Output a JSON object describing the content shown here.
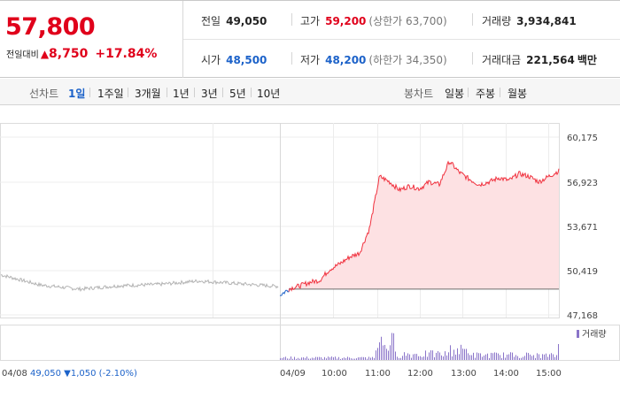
{
  "summary": {
    "current_price": "57,800",
    "change_label": "전일대비",
    "change_arrow": "▲",
    "change_amount": "8,750",
    "change_pct": "+17.84%",
    "up_color": "#e0001b",
    "down_color": "#1c62c9"
  },
  "stats": {
    "prev_close": {
      "label": "전일",
      "value": "49,050"
    },
    "high": {
      "label": "고가",
      "value": "59,200",
      "sub": "(상한가 63,700)"
    },
    "volume": {
      "label": "거래량",
      "value": "3,934,841"
    },
    "open": {
      "label": "시가",
      "value": "48,500"
    },
    "low": {
      "label": "저가",
      "value": "48,200",
      "sub": "(하한가 34,350)"
    },
    "trade_value": {
      "label": "거래대금",
      "value": "221,564",
      "unit": "백만"
    }
  },
  "tabs": {
    "line_label": "선차트",
    "line_items": [
      "1일",
      "1주일",
      "3개월",
      "1년",
      "3년",
      "5년",
      "10년"
    ],
    "active_index": 0,
    "candle_label": "봉차트",
    "candle_items": [
      "일봉",
      "주봉",
      "월봉"
    ]
  },
  "chart_data": {
    "type": "line",
    "y_ticks": [
      "60,175",
      "56,923",
      "53,671",
      "50,419",
      "47,168"
    ],
    "ylim": [
      47168,
      60175
    ],
    "x_ticks": [
      "04/08",
      "04/09",
      "10:00",
      "11:00",
      "12:00",
      "13:00",
      "14:00",
      "15:00"
    ],
    "volume_legend": "거래량",
    "prev_day_footer": "49,050 ▼1,050 (-2.10%)",
    "prev_close_level": 49050,
    "prev_day_series": {
      "x": [
        "04/08 09:00",
        "04/08 10:00",
        "04/08 11:00",
        "04/08 12:00",
        "04/08 13:00",
        "04/08 14:00",
        "04/08 15:00",
        "04/08 15:30"
      ],
      "values": [
        50100,
        49350,
        49050,
        49300,
        49400,
        49650,
        49450,
        49250
      ]
    },
    "today_series": {
      "x": [
        "09:00",
        "09:10",
        "09:30",
        "09:50",
        "10:00",
        "10:10",
        "10:30",
        "10:50",
        "10:55",
        "11:00",
        "11:10",
        "11:30",
        "11:45",
        "12:00",
        "12:20",
        "12:40",
        "12:50",
        "13:00",
        "13:10",
        "13:20",
        "13:30",
        "13:45",
        "14:00",
        "14:15",
        "14:30",
        "14:45",
        "15:00",
        "15:10",
        "15:20"
      ],
      "values": [
        48600,
        49100,
        49300,
        49550,
        49700,
        50500,
        50900,
        51400,
        51700,
        53500,
        57300,
        56900,
        56300,
        56600,
        56400,
        56900,
        56700,
        58400,
        57600,
        57100,
        56700,
        56900,
        57200,
        57000,
        57500,
        57300,
        56900,
        57300,
        57700
      ]
    },
    "colors": {
      "prev_day": "#b3b3b3",
      "up": "#f0313e",
      "up_fill": "#fde1e3",
      "open_segment": "#1c62c9",
      "volume": "#8a74c9"
    }
  }
}
